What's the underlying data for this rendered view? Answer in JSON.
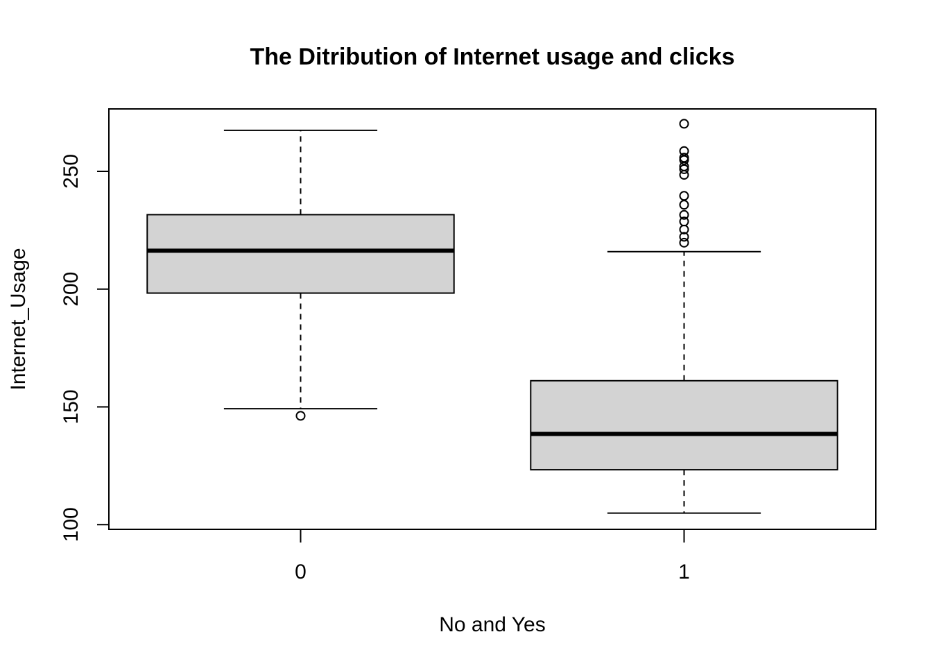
{
  "chart_data": {
    "type": "boxplot",
    "title": "The Ditribution of Internet usage and clicks",
    "xlabel": "No and Yes",
    "ylabel": "Internet_Usage",
    "categories": [
      "0",
      "1"
    ],
    "ylim": [
      98,
      276.5
    ],
    "yticks": [
      100,
      150,
      200,
      250
    ],
    "ytick_labels": [
      "100",
      "150",
      "200",
      "250"
    ],
    "box_fill": "#d3d3d3",
    "boxes": [
      {
        "category": "0",
        "whisker_low": 149.2,
        "q1": 198.3,
        "median": 216.3,
        "q3": 231.6,
        "whisker_high": 267.4,
        "outliers": [
          146.2
        ]
      },
      {
        "category": "1",
        "whisker_low": 104.9,
        "q1": 123.3,
        "median": 138.5,
        "q3": 161.1,
        "whisker_high": 215.9,
        "outliers": [
          270.2,
          258.6,
          255.8,
          254.8,
          252.1,
          250.9,
          248.5,
          239.6,
          235.8,
          231.5,
          228.7,
          225.3,
          222.2,
          219.7
        ]
      }
    ]
  }
}
